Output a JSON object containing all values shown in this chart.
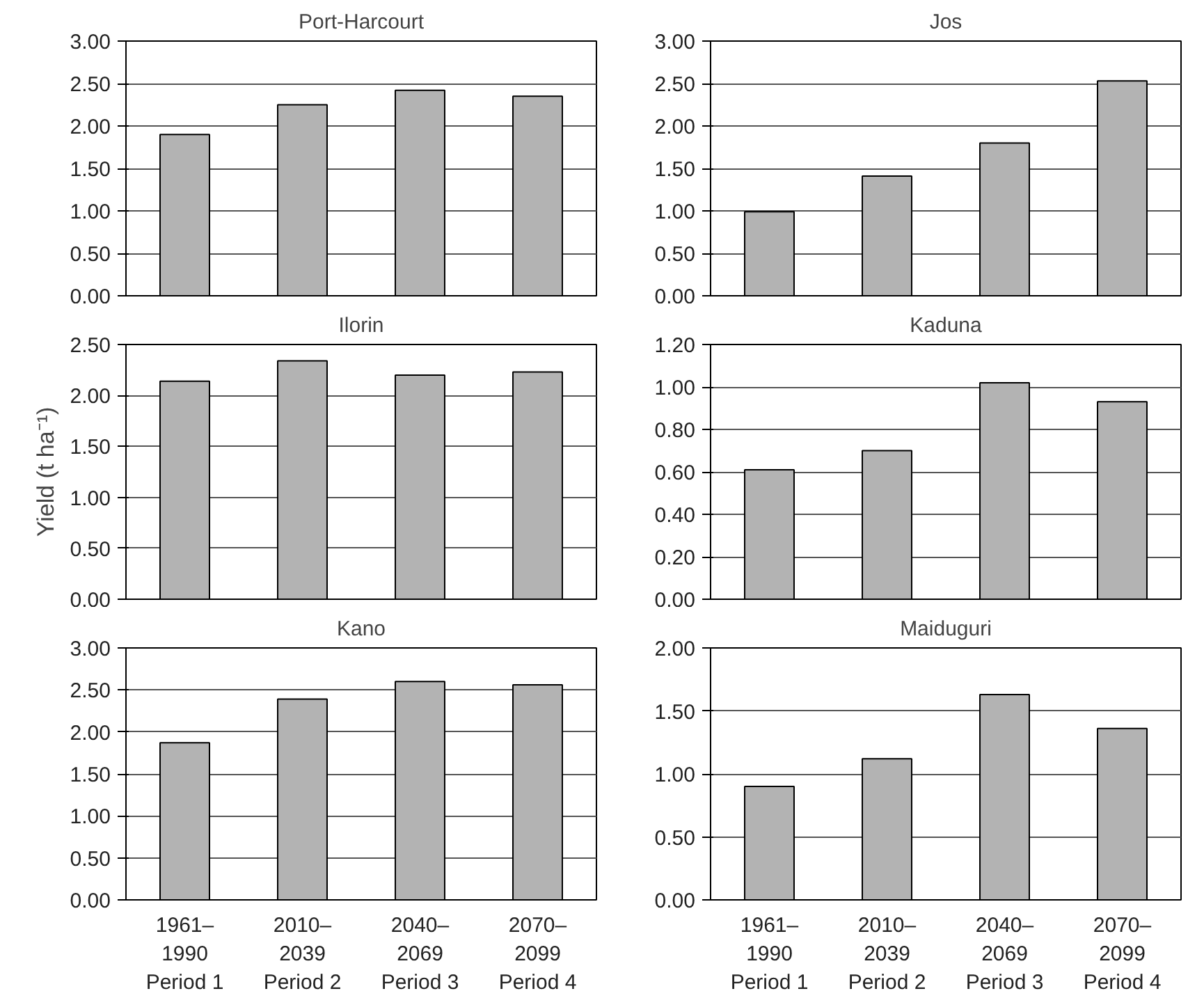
{
  "chart_data": [
    {
      "type": "bar",
      "title": "Port-Harcourt",
      "categories": [
        null,
        null,
        null,
        null
      ],
      "values": [
        1.9,
        2.25,
        2.42,
        2.35
      ],
      "color": "#b3b3b3",
      "ylim": [
        0,
        3
      ],
      "yticks": [
        {
          "value": 0,
          "label": "0.00"
        },
        {
          "value": 0.5,
          "label": "0.50"
        },
        {
          "value": 1,
          "label": "1.00"
        },
        {
          "value": 1.5,
          "label": "1.50"
        },
        {
          "value": 2,
          "label": "2.00"
        },
        {
          "value": 2.5,
          "label": "2.50"
        },
        {
          "value": 3,
          "label": "3.00"
        }
      ],
      "grid": "y",
      "tick_labels": "y"
    },
    {
      "type": "bar",
      "title": "Jos",
      "categories": [
        null,
        null,
        null,
        null
      ],
      "values": [
        0.99,
        1.41,
        1.8,
        2.53
      ],
      "color": "#b3b3b3",
      "ylim": [
        0,
        3
      ],
      "yticks": [
        {
          "value": 0,
          "label": "0.00"
        },
        {
          "value": 0.5,
          "label": "0.50"
        },
        {
          "value": 1,
          "label": "1.00"
        },
        {
          "value": 1.5,
          "label": "1.50"
        },
        {
          "value": 2,
          "label": "2.00"
        },
        {
          "value": 2.5,
          "label": "2.50"
        },
        {
          "value": 3,
          "label": "3.00"
        }
      ],
      "grid": "y",
      "tick_labels": "y"
    },
    {
      "type": "bar",
      "title": "Ilorin",
      "ylabel": "Yield (t ha⁻¹)",
      "categories": [
        null,
        null,
        null,
        null
      ],
      "values": [
        2.14,
        2.34,
        2.2,
        2.23
      ],
      "color": "#b3b3b3",
      "ylim": [
        0,
        2.5
      ],
      "yticks": [
        {
          "value": 0,
          "label": "0.00"
        },
        {
          "value": 0.5,
          "label": "0.50"
        },
        {
          "value": 1,
          "label": "1.00"
        },
        {
          "value": 1.5,
          "label": "1.50"
        },
        {
          "value": 2,
          "label": "2.00"
        },
        {
          "value": 2.5,
          "label": "2.50"
        }
      ],
      "grid": "y",
      "tick_labels": "y"
    },
    {
      "type": "bar",
      "title": "Kaduna",
      "categories": [
        null,
        null,
        null,
        null
      ],
      "values": [
        0.61,
        0.7,
        1.02,
        0.93
      ],
      "color": "#b3b3b3",
      "ylim": [
        0,
        1.2
      ],
      "yticks": [
        {
          "value": 0,
          "label": "0.00"
        },
        {
          "value": 0.2,
          "label": "0.20"
        },
        {
          "value": 0.4,
          "label": "0.40"
        },
        {
          "value": 0.6,
          "label": "0.60"
        },
        {
          "value": 0.8,
          "label": "0.80"
        },
        {
          "value": 1,
          "label": "1.00"
        },
        {
          "value": 1.2,
          "label": "1.20"
        }
      ],
      "grid": "y",
      "tick_labels": "y"
    },
    {
      "type": "bar",
      "title": "Kano",
      "categories": [
        "1961–\n1990\nPeriod 1",
        "2010–\n2039\nPeriod 2",
        "2040–\n2069\nPeriod 3",
        "2070–\n2099\nPeriod 4"
      ],
      "values": [
        1.87,
        2.39,
        2.6,
        2.56
      ],
      "color": "#b3b3b3",
      "ylim": [
        0,
        3
      ],
      "yticks": [
        {
          "value": 0,
          "label": "0.00"
        },
        {
          "value": 0.5,
          "label": "0.50"
        },
        {
          "value": 1,
          "label": "1.00"
        },
        {
          "value": 1.5,
          "label": "1.50"
        },
        {
          "value": 2,
          "label": "2.00"
        },
        {
          "value": 2.5,
          "label": "2.50"
        },
        {
          "value": 3,
          "label": "3.00"
        }
      ],
      "grid": "y"
    },
    {
      "type": "bar",
      "title": "Maiduguri",
      "categories": [
        "1961–\n1990\nPeriod 1",
        "2010–\n2039\nPeriod 2",
        "2040–\n2069\nPeriod 3",
        "2070–\n2099\nPeriod 4"
      ],
      "values": [
        0.9,
        1.12,
        1.63,
        1.36
      ],
      "color": "#b3b3b3",
      "ylim": [
        0,
        2
      ],
      "yticks": [
        {
          "value": 0,
          "label": "0.00"
        },
        {
          "value": 0.5,
          "label": "0.50"
        },
        {
          "value": 1,
          "label": "1.00"
        },
        {
          "value": 1.5,
          "label": "1.50"
        },
        {
          "value": 2,
          "label": "2.00"
        }
      ],
      "grid": "y"
    }
  ]
}
